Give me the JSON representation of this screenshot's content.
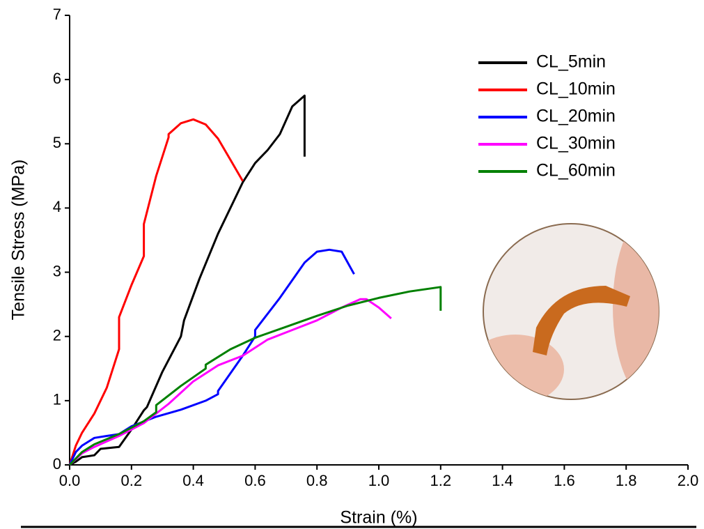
{
  "chart_data": {
    "type": "line",
    "x_label": "Strain (%)",
    "y_label": "Tensile Stress (MPa)",
    "xlim": [
      0,
      2.0
    ],
    "ylim": [
      0,
      7
    ],
    "xticks": [
      {
        "value": 0,
        "label": "0.0"
      },
      0.2,
      0.4,
      0.6,
      0.8,
      {
        "value": 1.0,
        "label": "1.0"
      },
      1.2,
      1.4,
      1.6,
      1.8,
      {
        "value": 2.0,
        "label": "2.0"
      }
    ],
    "yticks": [
      0,
      1,
      2,
      3,
      4,
      5,
      6,
      7
    ],
    "legend": "upper right",
    "series": [
      {
        "name": "CL_5min",
        "color": "#000000",
        "x": [
          0,
          0.02,
          0.04,
          0.08,
          0.1,
          0.14,
          0.16,
          0.2,
          0.24,
          0.25,
          0.3,
          0.36,
          0.37,
          0.42,
          0.48,
          0.56,
          0.6,
          0.64,
          0.68,
          0.72,
          0.76,
          0.76
        ],
        "values": [
          0,
          0.05,
          0.12,
          0.15,
          0.25,
          0.27,
          0.28,
          0.55,
          0.85,
          0.9,
          1.45,
          2.0,
          2.25,
          2.9,
          3.6,
          4.4,
          4.7,
          4.9,
          5.15,
          5.58,
          5.75,
          4.8
        ]
      },
      {
        "name": "CL_10min",
        "color": "#ff0000",
        "x": [
          0,
          0.02,
          0.04,
          0.08,
          0.12,
          0.16,
          0.16,
          0.2,
          0.24,
          0.24,
          0.28,
          0.32,
          0.32,
          0.36,
          0.4,
          0.44,
          0.48,
          0.52,
          0.56
        ],
        "values": [
          0,
          0.3,
          0.5,
          0.8,
          1.2,
          1.8,
          2.3,
          2.8,
          3.25,
          3.75,
          4.5,
          5.1,
          5.15,
          5.32,
          5.38,
          5.3,
          5.08,
          4.75,
          4.42
        ]
      },
      {
        "name": "CL_20min",
        "color": "#0000ff",
        "x": [
          0,
          0.02,
          0.04,
          0.08,
          0.12,
          0.16,
          0.2,
          0.28,
          0.36,
          0.44,
          0.48,
          0.48,
          0.56,
          0.6,
          0.6,
          0.68,
          0.76,
          0.8,
          0.84,
          0.88,
          0.92
        ],
        "values": [
          0,
          0.2,
          0.3,
          0.42,
          0.45,
          0.48,
          0.6,
          0.75,
          0.86,
          1.0,
          1.1,
          1.15,
          1.7,
          2.0,
          2.1,
          2.6,
          3.15,
          3.32,
          3.35,
          3.32,
          2.97
        ]
      },
      {
        "name": "CL_30min",
        "color": "#ff00ff",
        "x": [
          0,
          0.04,
          0.08,
          0.16,
          0.24,
          0.32,
          0.4,
          0.48,
          0.56,
          0.64,
          0.72,
          0.8,
          0.88,
          0.94,
          0.96,
          1.0,
          1.04
        ],
        "values": [
          0,
          0.18,
          0.28,
          0.45,
          0.65,
          0.95,
          1.3,
          1.55,
          1.7,
          1.95,
          2.1,
          2.25,
          2.45,
          2.58,
          2.58,
          2.45,
          2.28
        ]
      },
      {
        "name": "CL_60min",
        "color": "#008000",
        "x": [
          0,
          0.04,
          0.08,
          0.16,
          0.24,
          0.28,
          0.28,
          0.36,
          0.44,
          0.44,
          0.52,
          0.6,
          0.7,
          0.8,
          0.9,
          1.0,
          1.1,
          1.2,
          1.2
        ],
        "values": [
          0,
          0.2,
          0.32,
          0.48,
          0.68,
          0.82,
          0.93,
          1.23,
          1.5,
          1.56,
          1.8,
          1.98,
          2.15,
          2.32,
          2.48,
          2.6,
          2.7,
          2.77,
          2.4
        ]
      }
    ]
  }
}
